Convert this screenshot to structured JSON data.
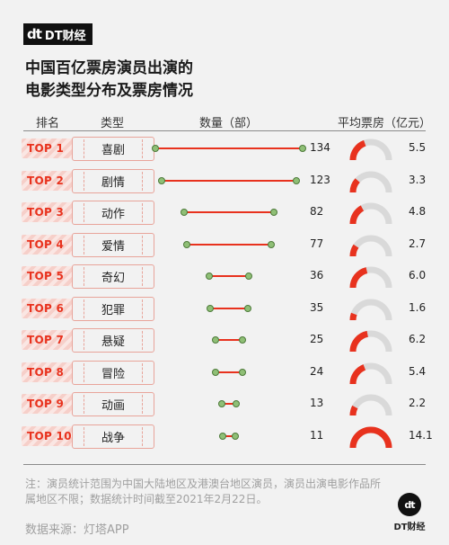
{
  "brand": {
    "mark": "dt",
    "name": "DT财经"
  },
  "title_line1": "中国百亿票房演员出演的",
  "title_line2": "电影类型分布及票房情况",
  "headers": {
    "rank": "排名",
    "genre": "类型",
    "count": "数量（部）",
    "avg_box": "平均票房（亿元）"
  },
  "chart_data": {
    "type": "bar",
    "title": "中国百亿票房演员出演的电影类型分布及票房情况",
    "ranks": [
      "TOP 1",
      "TOP 2",
      "TOP 3",
      "TOP 4",
      "TOP 5",
      "TOP 6",
      "TOP 7",
      "TOP 8",
      "TOP 9",
      "TOP 10"
    ],
    "categories": [
      "喜剧",
      "剧情",
      "动作",
      "爱情",
      "奇幻",
      "犯罪",
      "悬疑",
      "冒险",
      "动画",
      "战争"
    ],
    "series": [
      {
        "name": "数量（部）",
        "values": [
          134,
          123,
          82,
          77,
          36,
          35,
          25,
          24,
          13,
          11
        ]
      },
      {
        "name": "平均票房（亿元）",
        "values": [
          5.5,
          3.3,
          4.8,
          2.7,
          6.0,
          1.6,
          6.2,
          5.4,
          2.2,
          14.1
        ]
      }
    ],
    "count_range": [
      0,
      134
    ],
    "gauge_range": [
      0,
      14.1
    ],
    "colors": {
      "bar": "#e8321e",
      "gauge_fill": "#e8321e",
      "gauge_track": "#d9d9d9",
      "dot": "#8fbf76"
    }
  },
  "note": "注：演员统计范围为中国大陆地区及港澳台地区演员，演员出演电影作品所属地区不限；数据统计时间截至2021年2月22日。",
  "source": "数据来源：灯塔APP",
  "footer": {
    "mark": "dt",
    "name": "DT财经"
  }
}
